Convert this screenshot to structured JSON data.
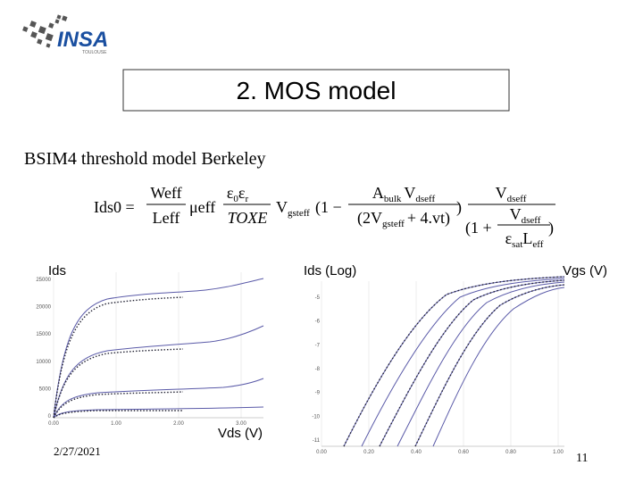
{
  "logo": {
    "name": "INSA",
    "city": "TOULOUSE"
  },
  "title": "2. MOS model",
  "subtitle": "BSIM4 threshold model Berkeley",
  "equation": {
    "lhs": "Ids0 =",
    "weff": "Weff",
    "leff": "Leff",
    "mueff": "μeff",
    "eps": "ε",
    "eps_sub": "0",
    "eps_r": "ε",
    "eps_r_sub": "r",
    "toxe": "TOXE",
    "v": "V",
    "gsteff": "gsteff",
    "open": "(1 −",
    "a": "A",
    "bulk": "bulk",
    "dseff": "dseff",
    "den_open": "(2V",
    "den_close": "+ 4.vt)",
    "close": ")",
    "one_plus": "(1 +",
    "eps_sat": "ε",
    "sat": "sat",
    "l": "L",
    "eff": "eff"
  },
  "left_plot": {
    "ylabel": "Ids",
    "xlabel": "Vds (V)",
    "yticks": [
      "25000",
      "20000",
      "15000",
      "10000",
      "5000",
      "0"
    ],
    "xticks": [
      "0.00",
      "1.00",
      "2.00",
      "3.00"
    ]
  },
  "right_plot": {
    "ylabel": "Ids (Log)",
    "xlabel": "Vgs (V)",
    "yticks": [
      "-5",
      "-6",
      "-7",
      "-8",
      "-9",
      "-10",
      "-11"
    ],
    "xticks": [
      "0.00",
      "0.20",
      "0.40",
      "0.60",
      "0.80",
      "1.00"
    ]
  },
  "footer": {
    "date": "2/27/2021",
    "page": "11"
  }
}
